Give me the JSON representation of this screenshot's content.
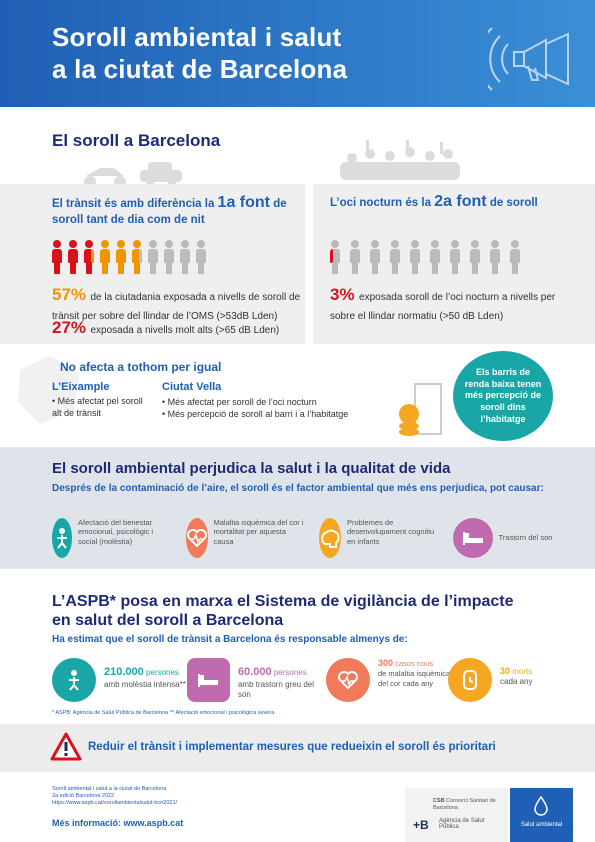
{
  "header": {
    "title_line1": "Soroll ambiental i salut",
    "title_line2": "a la ciutat de Barcelona"
  },
  "sec1": {
    "title": "El soroll a Barcelona",
    "left_title_a": "El trànsit és amb diferència la ",
    "left_title_b": "1a font",
    "left_title_c": "de soroll tant de dia com de nit",
    "right_title_a": "L’oci nocturn és la ",
    "right_title_b": "2a font",
    "right_title_c": " de soroll",
    "stat1_pct": "57%",
    "stat1_text": "de la ciutadania exposada a nivells de soroll de trànsit per sobre del llindar de l’OMS (>53dB Lden)",
    "stat2_pct": "27%",
    "stat2_text": "exposada a nivells molt alts (>65 dB Lden)",
    "stat3_pct": "3%",
    "stat3_text": "exposada soroll de l’oci nocturn a nivells per sobre el llindar normatiu (>50 dB Lden)"
  },
  "sec2": {
    "title": "No afecta a tothom per igual",
    "eix_title": "L’Eixample",
    "eix_b1": "Més afectat pel soroll alt de trànsit",
    "cv_title": "Ciutat Vella",
    "cv_b1": "Més afectat per soroll de l’oci nocturn",
    "cv_b2": "Més percepció de soroll al barri i a l’habitatge",
    "bubble": "Els barris de renda baixa tenen més percepció de soroll dins l’habitatge"
  },
  "sec3": {
    "title": "El soroll ambiental perjudica la salut i la qualitat de vida",
    "intro": "Després de la contaminació de l’aire, el soroll és el factor ambiental que més ens perjudica, pot causar:",
    "effects": [
      {
        "icon": "person-stress-icon",
        "text": "Afectació del benestar emocional, psicològic i social (molèstia)",
        "color": "#1aa6a6"
      },
      {
        "icon": "heart-pulse-icon",
        "text": "Malaltia isquèmica del cor i mortalitat per aquesta causa",
        "color": "#f07a5a"
      },
      {
        "icon": "brain-icon",
        "text": "Problemes de desenvolupament cognitiu en infants",
        "color": "#f5a623"
      },
      {
        "icon": "bed-icon",
        "text": "Trastorn del son",
        "color": "#c06bb0"
      }
    ]
  },
  "sec4": {
    "title_line1": "L’ASPB* posa en marxa el Sistema de vigilància de l’impacte",
    "title_line2": "en salut del soroll a Barcelona",
    "intro": "Ha estimat que el soroll de trànsit a Barcelona és responsable almenys de:",
    "items": [
      {
        "icon": "person-stress-icon",
        "num": "210.000",
        "unit": "persones",
        "text": "amb molèstia intensa**",
        "color": "#1aa6a6"
      },
      {
        "icon": "bed-icon",
        "num": "60.000",
        "unit": "persones",
        "text": "amb trastorn greu del son",
        "color": "#c06bb0"
      },
      {
        "icon": "heart-pulse-icon",
        "num": "300",
        "unit": "casos nous",
        "text": "de malaltia isquèmica del cor cada any",
        "color": "#f07a5a"
      },
      {
        "icon": "clock-icon",
        "num": "30",
        "unit": "morts",
        "text": "cada any",
        "color": "#f5a623"
      }
    ],
    "note1": "* ASPB: Agència de Salut Pública de Barcelona",
    "note2": "** Afectació emocional i psicològica severa"
  },
  "warning": {
    "text": "Reduir el trànsit i implementar mesures que redueixin el soroll és prioritari"
  },
  "footer": {
    "line1": "Soroll ambiental i salut a la ciutat de Barcelona",
    "line2": "2a edició Barcelona 2022",
    "line3": "https://www.aspb.cat/sorollambientalsalut-bcn2021/",
    "more": "Més informació:  www.aspb.cat",
    "csb": "Consorci Sanitari de Barcelona",
    "aspb": "Agència de Salut Pública",
    "salut": "Salut ambiental"
  }
}
